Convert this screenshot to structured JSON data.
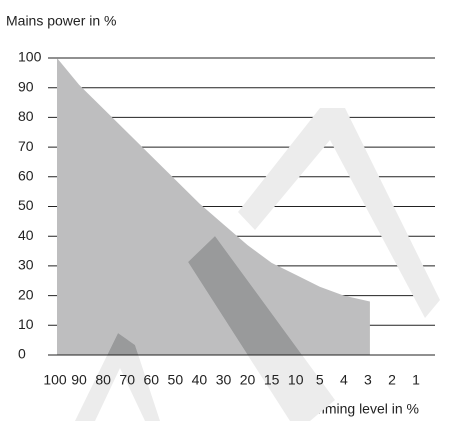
{
  "chart_data": {
    "type": "area",
    "y_label": "Mains power in %",
    "x_label": "Dimming level in %",
    "categories": [
      "100",
      "90",
      "80",
      "70",
      "60",
      "50",
      "40",
      "30",
      "20",
      "15",
      "10",
      "5",
      "4",
      "3",
      "2",
      "1"
    ],
    "values": [
      100,
      91,
      83,
      75,
      67,
      59,
      51,
      44,
      37,
      31,
      27,
      23,
      20,
      18,
      null,
      null
    ],
    "color": "#bebebf",
    "ylim": [
      0,
      100
    ],
    "yticks": [
      0,
      10,
      20,
      30,
      40,
      50,
      60,
      70,
      80,
      90,
      100
    ],
    "grid": true
  }
}
